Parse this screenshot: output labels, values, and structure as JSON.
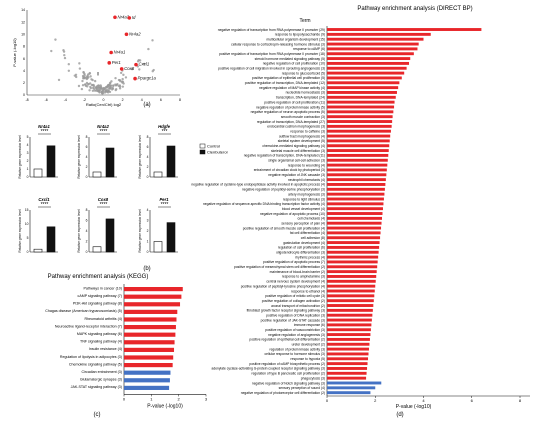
{
  "figure": {
    "panels": [
      "(a)",
      "(b)",
      "(c)",
      "(d)"
    ]
  },
  "colors": {
    "red": "#e8262a",
    "blue": "#4472c4",
    "grey": "#9a9a9a",
    "black": "#111111"
  },
  "chart_data": [
    {
      "id": "volcano",
      "type": "scatter",
      "xlabel": "Ratio(Cen/Ctrl) log2",
      "ylabel": "P-value (-log10)",
      "xlim": [
        -8,
        8
      ],
      "ylim": [
        0,
        14
      ],
      "xticks": [
        "-8",
        "-6",
        "-4",
        "-2",
        "0",
        "2",
        "4",
        "6",
        "8"
      ],
      "yticks": [
        "0",
        "2",
        "4",
        "6",
        "8",
        "10",
        "12",
        "14"
      ],
      "highlighted": [
        {
          "label": "Nr4a3",
          "x": 1.2,
          "y": 12.8
        },
        {
          "label": "Id",
          "x": 2.7,
          "y": 12.7
        },
        {
          "label": "Nr4a2",
          "x": 2.4,
          "y": 10.0
        },
        {
          "label": "Nr4a1",
          "x": 0.8,
          "y": 7.0
        },
        {
          "label": "Per1",
          "x": 0.6,
          "y": 5.3
        },
        {
          "label": "Cxcl1",
          "x": 3.4,
          "y": 5.0
        },
        {
          "label": "Cox8",
          "x": 1.9,
          "y": 4.3
        },
        {
          "label": "Ppargc1a",
          "x": 3.3,
          "y": 2.7
        }
      ],
      "labels_extra": [
        "ll"
      ]
    },
    {
      "id": "bar-panels",
      "type": "bar",
      "legend": [
        "Control",
        "Clenbuterol"
      ],
      "ylabel": "Relative gene expression level",
      "panels": [
        {
          "gene": "Nr4a1",
          "values": [
            1.0,
            3.9
          ],
          "ylim": [
            0,
            5
          ],
          "yticks": [
            "0",
            "1",
            "2",
            "3",
            "4",
            "5"
          ],
          "sig": "****"
        },
        {
          "gene": "Nr4a2",
          "values": [
            1.0,
            5.8
          ],
          "ylim": [
            0,
            8
          ],
          "yticks": [
            "0",
            "2",
            "4",
            "6",
            "8"
          ],
          "sig": "****"
        },
        {
          "gene": "Hdgfe",
          "values": [
            1.0,
            6.2
          ],
          "ylim": [
            0,
            8
          ],
          "yticks": [
            "0",
            "2",
            "4",
            "6",
            "8"
          ],
          "sig": "***"
        },
        {
          "gene": "Cxcl1",
          "values": [
            1.0,
            9.0
          ],
          "ylim": [
            0,
            15
          ],
          "yticks": [
            "0",
            "5",
            "10",
            "15"
          ],
          "sig": "****"
        },
        {
          "gene": "Cox8",
          "values": [
            1.0,
            6.3
          ],
          "ylim": [
            0,
            8
          ],
          "yticks": [
            "0",
            "2",
            "4",
            "6",
            "8"
          ],
          "sig": "****"
        },
        {
          "gene": "Per1",
          "values": [
            1.0,
            2.8
          ],
          "ylim": [
            0,
            4
          ],
          "yticks": [
            "0",
            "1",
            "2",
            "3",
            "4"
          ],
          "sig": "****"
        }
      ]
    },
    {
      "id": "kegg",
      "type": "bar",
      "title": "Pathway enrichment analysis (KEGG)",
      "xlabel": "P-value (-log10)",
      "xlim": [
        0,
        3
      ],
      "xticks": [
        "0",
        "1",
        "2",
        "3"
      ],
      "categories": [
        "Pathways in cancer (10)",
        "cAMP signaling pathway (7)",
        "PI3K-Akt signaling pathway (8)",
        "Chagas disease (American trypanosomiasis) (5)",
        "Rheumatoid arthritis (4)",
        "Neuroactive ligand-receptor interaction (7)",
        "MAPK signaling pathway (6)",
        "TNF signaling pathway (4)",
        "Insulin resistance (4)",
        "Regulation of lipolysis in adipocytes (3)",
        "Chemokine signaling pathway (5)",
        "Circadian entrainment (3)",
        "Glutamatergic synapse (3)",
        "JAK-STAT signaling pathway (3)"
      ],
      "values": [
        2.15,
        2.1,
        2.05,
        1.95,
        1.92,
        1.9,
        1.88,
        1.85,
        1.83,
        1.8,
        1.78,
        1.7,
        1.68,
        1.65
      ],
      "colors": [
        "red",
        "red",
        "red",
        "red",
        "red",
        "red",
        "red",
        "red",
        "red",
        "red",
        "red",
        "blue",
        "blue",
        "blue"
      ]
    },
    {
      "id": "direct-bp",
      "type": "bar",
      "title": "Pathway enrichment analysis (DIRECT BP)",
      "legend_title": "Term",
      "xlabel": "P-value (-log10)",
      "xlim": [
        0,
        8
      ],
      "xticks": [
        "0",
        "2",
        "4",
        "6",
        "8"
      ],
      "categories": [
        "negative regulation of transcription from RNA polymerase II promoter (29)",
        "response to lipopolysaccharide (9)",
        "multicellular organism development (15)",
        "cellular response to corticotropin-releasing hormone stimulus (3)",
        "response to cAMP (6)",
        "positive regulation of transcription from RNA polymerase II promoter (18)",
        "steroid hormone mediated signaling pathway (5)",
        "negative regulation of cell proliferation (10)",
        "positive regulation of cell migration involved in sprouting angiogenesis (3)",
        "response to glucocorticoid (5)",
        "positive regulation of epithelial cell proliferation (5)",
        "positive regulation of transcription, DNA-templated (12)",
        "negative regulation of MAP kinase activity (4)",
        "nucleotide homeostasis (3)",
        "transcription, DNA-templated (24)",
        "positive regulation of cell proliferation (11)",
        "negative regulation of protein kinase activity (5)",
        "negative regulation of neuron apoptotic process (5)",
        "smooth muscle contraction (3)",
        "regulation of transcription, DNA-templated (27)",
        "endocardial cushion morphogenesis (3)",
        "response to caffeine (3)",
        "outflow tract morphogenesis (4)",
        "skeletal system development (5)",
        "chemokine-mediated signaling pathway (4)",
        "skeletal muscle cell differentiation (3)",
        "negative regulation of transcription, DNA-templated (11)",
        "single organismal cell-cell adhesion (3)",
        "response to wounding (4)",
        "entrainment of circadian clock by photoperiod (3)",
        "negative regulation of JNK cascade (3)",
        "neutrophil chemotaxis (4)",
        "negative regulation of cysteine-type endopeptidase activity involved in apoptotic process (4)",
        "negative regulation of peptidyl-serine phosphorylation (3)",
        "artery morphogenesis (3)",
        "response to light stimulus (3)",
        "negative regulation of sequence-specific DNA binding transcription factor activity (4)",
        "blood vessel development (4)",
        "negative regulation of apoptotic process (10)",
        "cell chemotaxis (4)",
        "sensory perception of pain (4)",
        "positive regulation of smooth muscle cell proliferation (4)",
        "fat cell differentiation (4)",
        "cell adhesion (8)",
        "gastrulation development (4)",
        "regulation of cell proliferation (6)",
        "oligodendrocyte differentiation (3)",
        "rhythmic process (4)",
        "positive regulation of apoptotic process (7)",
        "positive regulation of mesenchymal stem cell differentiation (2)",
        "maintenance of blood-brain barrier (2)",
        "response to amphetamine (3)",
        "central nervous system development (4)",
        "positive regulation of peptidyl-tyrosine phosphorylation (4)",
        "response to ethanol (4)",
        "positive regulation of mitotic cell cycle (3)",
        "positive regulation of collagen activation (2)",
        "axonal transport of mitochondrion (2)",
        "fibroblast growth factor receptor signaling pathway (3)",
        "positive regulation of DNA replication (3)",
        "positive regulation of JAK-STAT cascade (3)",
        "immune response (6)",
        "positive regulation of vasoconstriction (3)",
        "negative regulation of angiogenesis (3)",
        "positive regulation of epithelial cell differentiation (2)",
        "ureter development (2)",
        "regulation of protein kinase activity (3)",
        "cellular response to hormone stimulus (3)",
        "response to hypoxia (5)",
        "positive regulation of cAMP biosynthetic process (2)",
        "adenylate cyclase-activating G-protein coupled receptor signaling pathway (3)",
        "regulation of type B pancreatic cell proliferation (2)",
        "phagocytosis (3)",
        "negative regulation of Notch signaling pathway (3)",
        "sensory perception of sound (4)",
        "negative regulation of photoreceptor cell differentiation (2)"
      ],
      "values": [
        6.4,
        4.3,
        4.0,
        3.8,
        3.75,
        3.6,
        3.45,
        3.4,
        3.3,
        3.2,
        3.1,
        3.0,
        2.95,
        2.9,
        2.85,
        2.8,
        2.78,
        2.75,
        2.72,
        2.7,
        2.68,
        2.65,
        2.62,
        2.6,
        2.58,
        2.56,
        2.54,
        2.52,
        2.5,
        2.48,
        2.46,
        2.44,
        2.42,
        2.4,
        2.38,
        2.36,
        2.34,
        2.32,
        2.3,
        2.28,
        2.26,
        2.24,
        2.22,
        2.2,
        2.18,
        2.16,
        2.14,
        2.12,
        2.1,
        2.08,
        2.06,
        2.04,
        2.02,
        2.0,
        1.98,
        1.96,
        1.94,
        1.92,
        1.9,
        1.88,
        1.86,
        1.84,
        1.82,
        1.8,
        1.78,
        1.76,
        1.74,
        1.72,
        1.7,
        1.68,
        1.66,
        1.64,
        1.62,
        2.25,
        2.0,
        1.8
      ],
      "colors_last_blue": 3
    }
  ]
}
